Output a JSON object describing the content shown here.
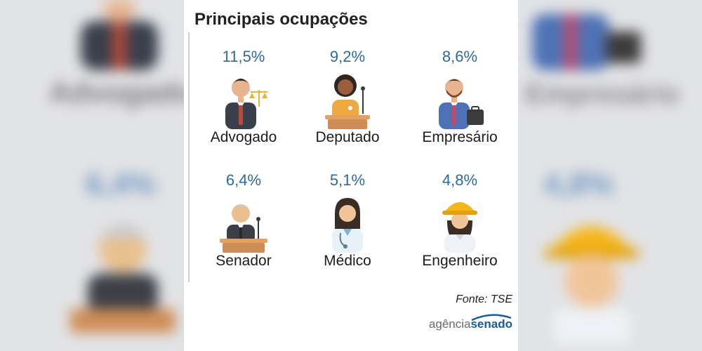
{
  "title": "Principais ocupações",
  "occupations": [
    {
      "label": "Advogado",
      "percent": "11,5%",
      "icon": "lawyer-icon"
    },
    {
      "label": "Deputado",
      "percent": "9,2%",
      "icon": "deputy-icon"
    },
    {
      "label": "Empresário",
      "percent": "8,6%",
      "icon": "businessman-icon"
    },
    {
      "label": "Senador",
      "percent": "6,4%",
      "icon": "senator-icon"
    },
    {
      "label": "Médico",
      "percent": "5,1%",
      "icon": "doctor-icon"
    },
    {
      "label": "Engenheiro",
      "percent": "4,8%",
      "icon": "engineer-icon"
    }
  ],
  "source": "Fonte: TSE",
  "logo": {
    "part1": "agência",
    "part2": "senado"
  },
  "colors": {
    "percent": "#2d6a9c",
    "logo_blue": "#1d5a96",
    "background_blur": "#e2e3e6"
  }
}
